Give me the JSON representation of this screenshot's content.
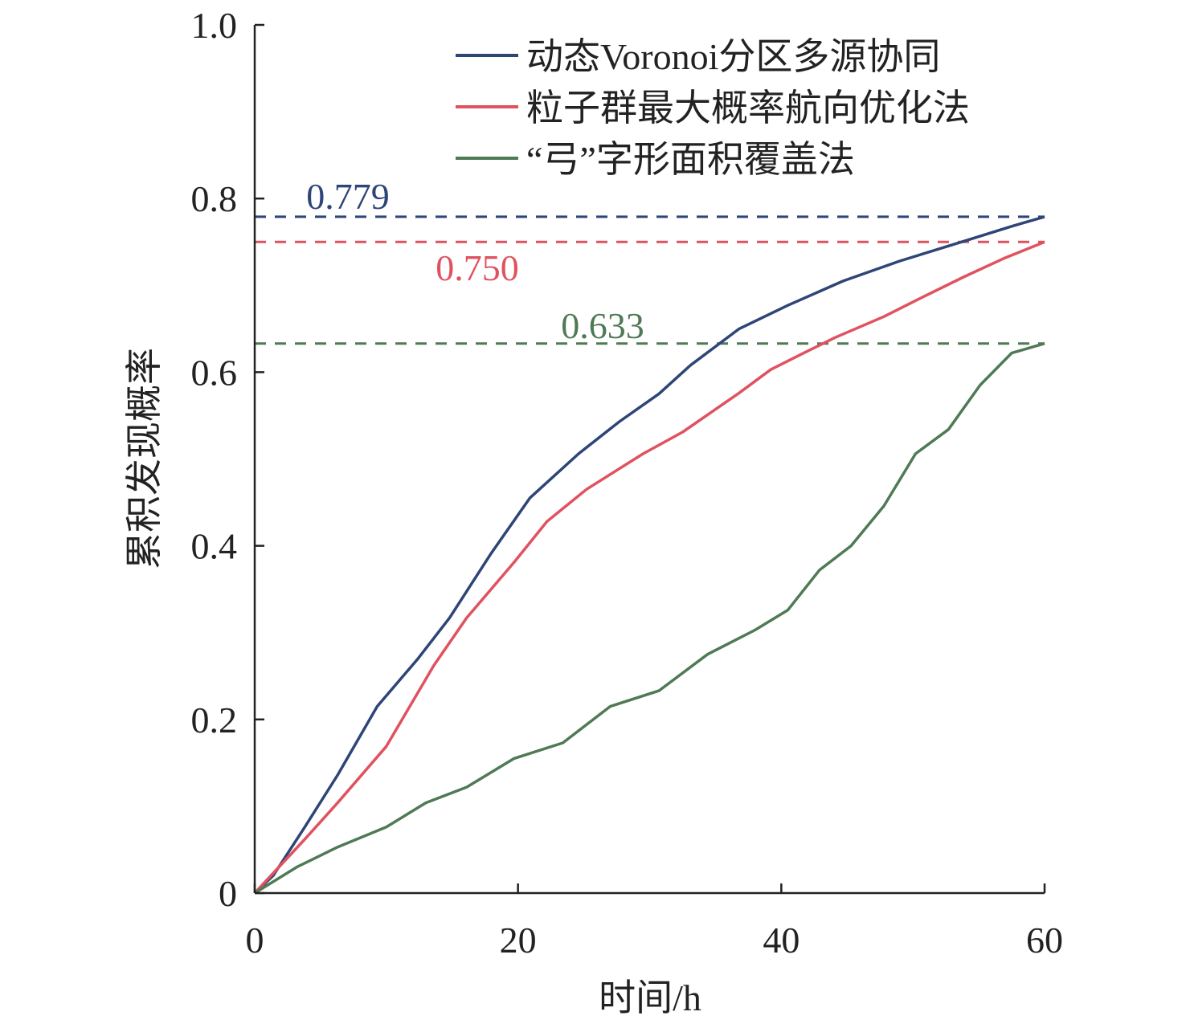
{
  "chart_data": {
    "type": "line",
    "title": "",
    "xlabel": "时间/h",
    "ylabel": "累积发现概率",
    "xlim": [
      0,
      60
    ],
    "ylim": [
      0,
      1.0
    ],
    "x_ticks": [
      0,
      20,
      40,
      60
    ],
    "x_tick_labels": [
      "0",
      "20",
      "40",
      "60"
    ],
    "y_ticks": [
      0,
      0.2,
      0.4,
      0.6,
      0.8,
      1.0
    ],
    "y_tick_labels": [
      "0",
      "0.2",
      "0.4",
      "0.6",
      "0.8",
      "1.0"
    ],
    "grid": false,
    "legend_position": "top-right",
    "series": [
      {
        "name": "动态Voronoi分区多源协同",
        "color": "#2e4577",
        "x": [
          0,
          1.4,
          3.8,
          6.3,
          9.3,
          12.4,
          14.8,
          17.9,
          20.9,
          24.6,
          27.7,
          30.7,
          33.1,
          36.8,
          40.5,
          44.7,
          49,
          53.9,
          57.5,
          60
        ],
        "y": [
          0,
          0.02,
          0.076,
          0.136,
          0.215,
          0.27,
          0.317,
          0.39,
          0.455,
          0.506,
          0.543,
          0.575,
          0.608,
          0.65,
          0.677,
          0.705,
          0.728,
          0.751,
          0.768,
          0.779
        ],
        "final_value": 0.779,
        "final_label": "0.779"
      },
      {
        "name": "粒子群最大概率航向优化法",
        "color": "#e0525f",
        "x": [
          0,
          3.8,
          6.3,
          10,
          13.6,
          16.1,
          19.7,
          22.2,
          25.2,
          29.5,
          32.5,
          36.8,
          39.2,
          41.7,
          44.1,
          47.8,
          50.8,
          53.9,
          56.9,
          60
        ],
        "y": [
          0,
          0.062,
          0.104,
          0.169,
          0.262,
          0.317,
          0.381,
          0.428,
          0.465,
          0.506,
          0.531,
          0.576,
          0.603,
          0.622,
          0.64,
          0.664,
          0.687,
          0.71,
          0.731,
          0.75
        ],
        "final_value": 0.75,
        "final_label": "0.750"
      },
      {
        "name": "“弓”字形面积覆盖法",
        "color": "#4f7a55",
        "x": [
          0,
          3.2,
          6.3,
          10,
          13,
          16.1,
          19.7,
          23.4,
          27,
          30.7,
          34.4,
          38,
          40.5,
          42.9,
          45.3,
          47.8,
          50.2,
          52.7,
          55.1,
          57.5,
          60
        ],
        "y": [
          0,
          0.03,
          0.053,
          0.076,
          0.104,
          0.122,
          0.155,
          0.173,
          0.215,
          0.233,
          0.275,
          0.303,
          0.326,
          0.372,
          0.4,
          0.446,
          0.506,
          0.534,
          0.585,
          0.622,
          0.633
        ],
        "final_value": 0.633,
        "final_label": "0.633"
      }
    ]
  }
}
